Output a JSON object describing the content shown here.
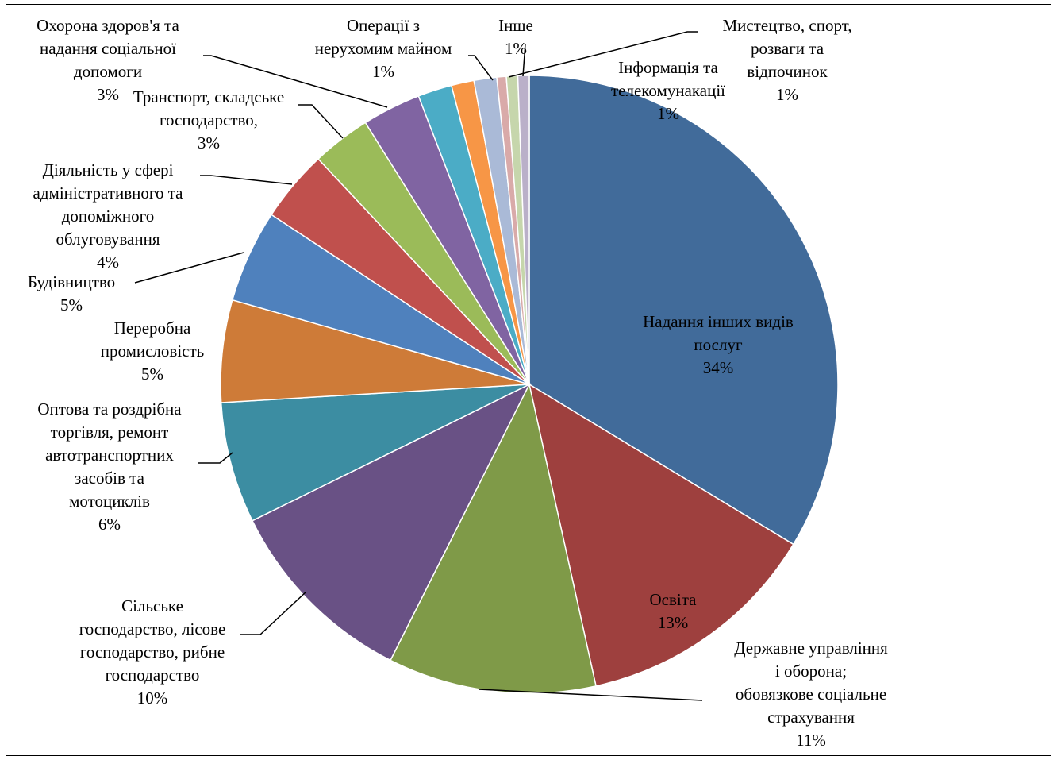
{
  "chart_data": {
    "type": "pie",
    "title": "",
    "slices": [
      {
        "label": [
          "Надання інших видів",
          "послуг"
        ],
        "pct": "34%",
        "value": 34.0,
        "color": "#416B9A"
      },
      {
        "label": [
          "Освіта"
        ],
        "pct": "13%",
        "value": 13.0,
        "color": "#9E403E"
      },
      {
        "label": [
          "Державне управління",
          "і оборона;",
          "обовязкове соціальне",
          "страхування"
        ],
        "pct": "11%",
        "value": 11.0,
        "color": "#7F9A48"
      },
      {
        "label": [
          "Сільське",
          "господарство, лісове",
          "господарство, рибне",
          "господарство"
        ],
        "pct": "10%",
        "value": 10.4,
        "color": "#695185"
      },
      {
        "label": [
          "Оптова та роздрібна",
          "торгівля, ремонт",
          "автотранспортних",
          "засобів та",
          "мотоциклів"
        ],
        "pct": "6%",
        "value": 6.4,
        "color": "#3C8DA2"
      },
      {
        "label": [
          "Переробна",
          "промисловість"
        ],
        "pct": "5%",
        "value": 5.4,
        "color": "#CE7B38"
      },
      {
        "label": [
          "Будівництво"
        ],
        "pct": "5%",
        "value": 4.9,
        "color": "#4F81BD"
      },
      {
        "label": [
          "Діяльність у сфері",
          "адміністративного та",
          "допоміжного",
          "облуговування"
        ],
        "pct": "4%",
        "value": 3.8,
        "color": "#C0504D"
      },
      {
        "label": [
          "Транспорт, складське",
          "господарство,"
        ],
        "pct": "3%",
        "value": 3.1,
        "color": "#9BBB59"
      },
      {
        "label": [
          "Охорона здоров'я та",
          "надання соціальної",
          "допомоги"
        ],
        "pct": "3%",
        "value": 3.1,
        "color": "#8064A2"
      },
      {
        "label": [],
        "pct": "",
        "value": 1.8,
        "color": "#4BACC6"
      },
      {
        "label": [
          "Операції з",
          "нерухомим майном"
        ],
        "pct": "1%",
        "value": 1.2,
        "color": "#F79646"
      },
      {
        "label": [],
        "pct": "",
        "value": 1.2,
        "color": "#AABAD7"
      },
      {
        "label": [
          "Інше"
        ],
        "pct": "1%",
        "value": 0.5,
        "color": "#D9AAA9"
      },
      {
        "label": [
          "Мистецтво, спорт,",
          "розваги та",
          "відпочинок"
        ],
        "pct": "1%",
        "value": 0.6,
        "color": "#C6D6AC"
      },
      {
        "label": [
          "Інформація та",
          "телекомунакації"
        ],
        "pct": "1%",
        "value": 0.6,
        "color": "#BAB0C9"
      }
    ]
  }
}
